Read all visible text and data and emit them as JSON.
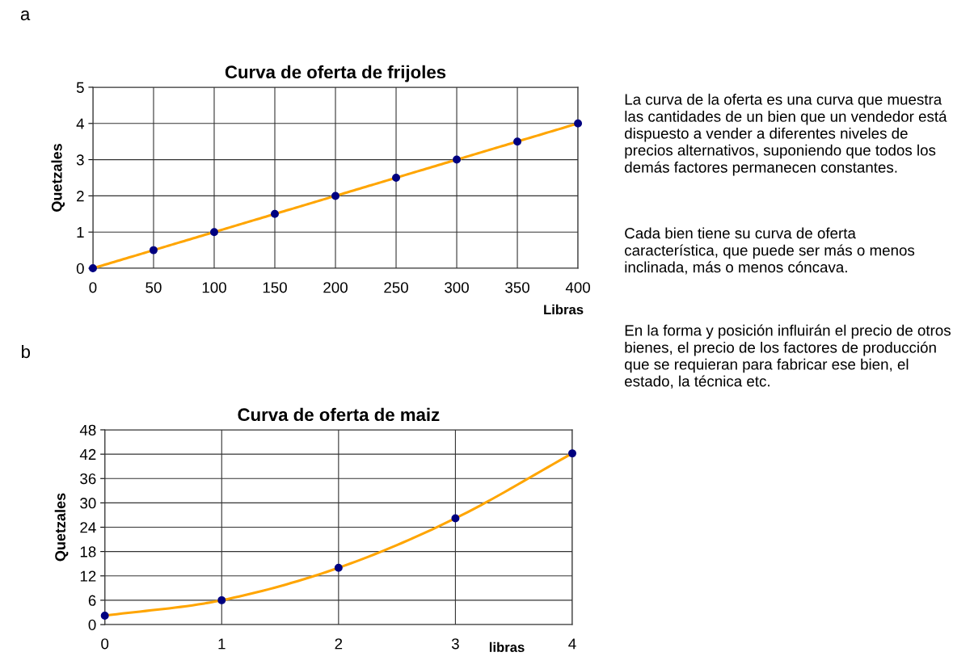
{
  "chart_data": [
    {
      "type": "line",
      "title": "Curva de oferta de frijoles",
      "xlabel": "Libras",
      "ylabel": "Quetzales",
      "annotations": [
        "a"
      ],
      "x": [
        0,
        50,
        100,
        150,
        200,
        250,
        300,
        350,
        400
      ],
      "xlim": [
        0,
        400
      ],
      "xticks": [
        0,
        50,
        100,
        150,
        200,
        250,
        300,
        350,
        400
      ],
      "ylim": [
        0,
        5
      ],
      "yticks": [
        0,
        1,
        2,
        3,
        4,
        5
      ],
      "grid": true,
      "series": [
        {
          "type": "line",
          "color": "#ffa500",
          "marker": "none",
          "values": [
            0,
            0.5,
            1,
            1.5,
            2,
            2.5,
            3,
            3.5,
            4
          ]
        },
        {
          "type": "scatter",
          "color": "#000080",
          "marker": "circle",
          "values": [
            0,
            0.5,
            1,
            1.5,
            2,
            2.5,
            3,
            3.5,
            4
          ]
        }
      ]
    },
    {
      "type": "line",
      "title": "Curva de oferta de maiz",
      "xlabel": "libras",
      "ylabel": "Quetzales",
      "annotations": [
        "b"
      ],
      "x": [
        0,
        1,
        2,
        3,
        4
      ],
      "xlim": [
        0,
        4
      ],
      "xticks": [
        0,
        1,
        2,
        3,
        4
      ],
      "ylim": [
        0,
        48
      ],
      "yticks": [
        0,
        6,
        12,
        18,
        24,
        30,
        36,
        42,
        48
      ],
      "grid": true,
      "series": [
        {
          "type": "line",
          "color": "#ffa500",
          "marker": "none",
          "values": [
            2.2,
            6,
            14,
            26.2,
            42.2
          ]
        },
        {
          "type": "scatter",
          "color": "#000080",
          "marker": "circle",
          "values": [
            2.2,
            6,
            14,
            26.2,
            42.2
          ]
        }
      ]
    },
    {
      "type": "other",
      "annotations": [
        "La curva de la oferta es una curva que muestra las cantidades de un bien que un vendedor está dispuesto a vender a diferentes niveles de precios alternativos, suponiendo que todos los demás factores permanecen constantes.",
        "Cada bien tiene su curva de oferta característica, que puede ser más o menos inclinada, más o menos cóncava.",
        "En la forma y posición influirán el precio de otros bienes, el precio de los factores de producción que se requieran para fabricar ese bien, el estado, la técnica etc."
      ]
    }
  ]
}
